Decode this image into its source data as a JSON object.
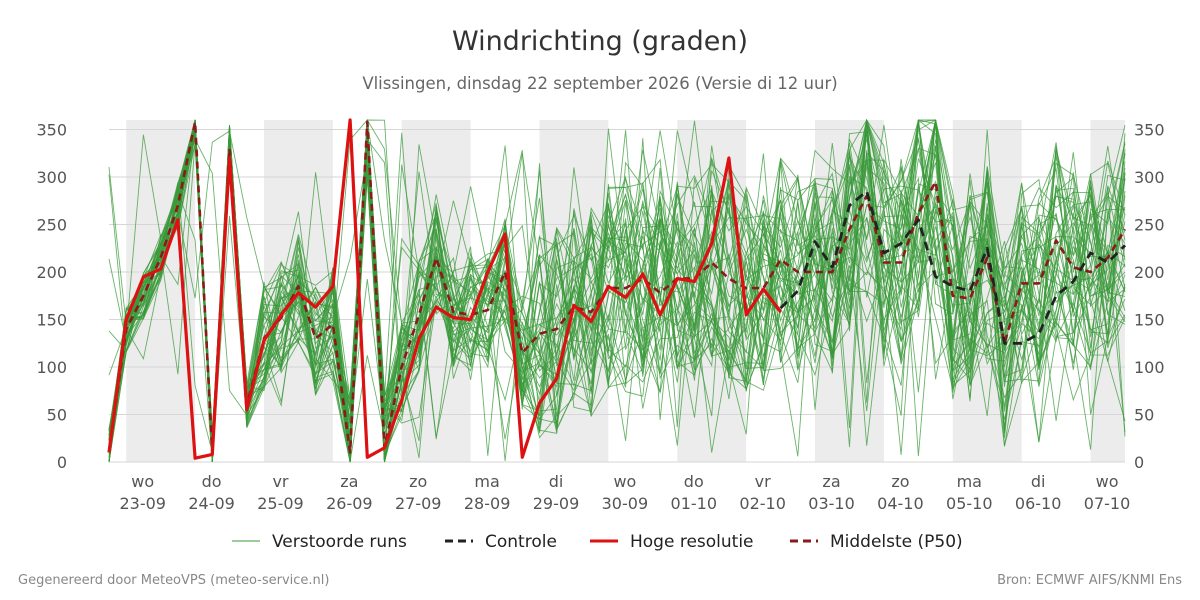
{
  "chart_data": {
    "type": "line",
    "title": "Windrichting (graden)",
    "subtitle": "Vlissingen, dinsdag 22 september 2026 (Versie di 12 uur)",
    "footer_left": "Gegenereerd door MeteoVPS (meteo-service.nl)",
    "footer_right": "Bron: ECMWF AIFS/KNMI Ens",
    "ylim": [
      0,
      360
    ],
    "yticks": [
      0,
      50,
      100,
      150,
      200,
      250,
      300,
      350
    ],
    "grid": true,
    "legend_position": "bottom",
    "x_unit": "days since 2026-09-23 00:00",
    "xlim": [
      -0.25,
      14.5
    ],
    "xtick_labels": [
      {
        "day": "wo",
        "date": "23-09"
      },
      {
        "day": "do",
        "date": "24-09"
      },
      {
        "day": "vr",
        "date": "25-09"
      },
      {
        "day": "za",
        "date": "26-09"
      },
      {
        "day": "zo",
        "date": "27-09"
      },
      {
        "day": "ma",
        "date": "28-09"
      },
      {
        "day": "di",
        "date": "29-09"
      },
      {
        "day": "wo",
        "date": "30-09"
      },
      {
        "day": "do",
        "date": "01-10"
      },
      {
        "day": "vr",
        "date": "02-10"
      },
      {
        "day": "za",
        "date": "03-10"
      },
      {
        "day": "zo",
        "date": "04-10"
      },
      {
        "day": "ma",
        "date": "05-10"
      },
      {
        "day": "di",
        "date": "06-10"
      },
      {
        "day": "wo",
        "date": "07-10"
      }
    ],
    "shaded_bands": [
      [
        0,
        1
      ],
      [
        2,
        3
      ],
      [
        4,
        5
      ],
      [
        6,
        7
      ],
      [
        8,
        9
      ],
      [
        10,
        11
      ],
      [
        12,
        13
      ],
      [
        14,
        14.5
      ]
    ],
    "legend": [
      {
        "name": "Verstoorde runs",
        "color": "#3a9a3a",
        "style": "solid-thin"
      },
      {
        "name": "Controle",
        "color": "#222222",
        "style": "dashed"
      },
      {
        "name": "Hoge resolutie",
        "color": "#dd1111",
        "style": "solid"
      },
      {
        "name": "Middelste (P50)",
        "color": "#8b1a1a",
        "style": "dashed"
      }
    ],
    "series": [
      {
        "name": "Hoge resolutie",
        "color": "#dd1111",
        "x": [
          -0.25,
          0,
          0.25,
          0.5,
          0.75,
          1,
          1.25,
          1.5,
          1.75,
          2,
          2.25,
          2.5,
          2.75,
          3,
          3.25,
          3.5,
          3.75,
          4,
          4.25,
          4.5,
          4.75,
          5,
          5.25,
          5.5,
          5.75,
          6,
          6.25,
          6.5,
          6.75,
          7,
          7.25,
          7.5,
          7.75,
          8,
          8.25,
          8.5,
          8.75,
          9,
          9.25,
          9.5
        ],
        "y": [
          10,
          150,
          195,
          203,
          255,
          4,
          8,
          320,
          55,
          128,
          155,
          178,
          163,
          185,
          360,
          5,
          15,
          65,
          130,
          163,
          152,
          150,
          200,
          240,
          5,
          62,
          88,
          165,
          148,
          185,
          173,
          198,
          155,
          193,
          190,
          230,
          320,
          155,
          182,
          158
        ]
      },
      {
        "name": "Controle",
        "color": "#222222",
        "x": [
          9.5,
          9.75,
          10,
          10.25,
          10.5,
          10.75,
          11,
          11.25,
          11.5,
          11.75,
          12,
          12.25,
          12.5,
          12.75,
          13,
          13.25,
          13.5,
          13.75,
          14,
          14.25,
          14.5
        ],
        "y": [
          162,
          180,
          232,
          205,
          270,
          285,
          220,
          230,
          255,
          195,
          185,
          180,
          225,
          125,
          125,
          135,
          175,
          190,
          220,
          210,
          228
        ]
      },
      {
        "name": "Middelste (P50)",
        "color": "#8b1a1a",
        "x": [
          -0.25,
          0,
          0.25,
          0.5,
          0.75,
          1,
          1.25,
          1.5,
          1.75,
          2,
          2.25,
          2.5,
          2.75,
          3,
          3.25,
          3.5,
          3.75,
          4,
          4.25,
          4.5,
          4.75,
          5,
          5.25,
          5.5,
          5.75,
          6,
          6.25,
          6.5,
          6.75,
          7,
          7.25,
          7.5,
          7.75,
          8,
          8.25,
          8.5,
          8.75,
          9,
          9.25,
          9.5,
          9.75,
          10,
          10.25,
          10.5,
          10.75,
          11,
          11.25,
          11.5,
          11.75,
          12,
          12.25,
          12.5,
          12.75,
          13,
          13.25,
          13.5,
          13.75,
          14,
          14.25,
          14.5
        ],
        "y": [
          10,
          140,
          175,
          215,
          270,
          358,
          8,
          330,
          60,
          130,
          152,
          185,
          130,
          145,
          10,
          358,
          15,
          100,
          155,
          215,
          158,
          155,
          160,
          200,
          115,
          135,
          140,
          163,
          158,
          183,
          183,
          193,
          178,
          193,
          193,
          210,
          193,
          183,
          183,
          213,
          200,
          200,
          200,
          245,
          280,
          210,
          210,
          262,
          295,
          175,
          172,
          215,
          125,
          188,
          188,
          233,
          205,
          200,
          215,
          245
        ]
      }
    ]
  }
}
